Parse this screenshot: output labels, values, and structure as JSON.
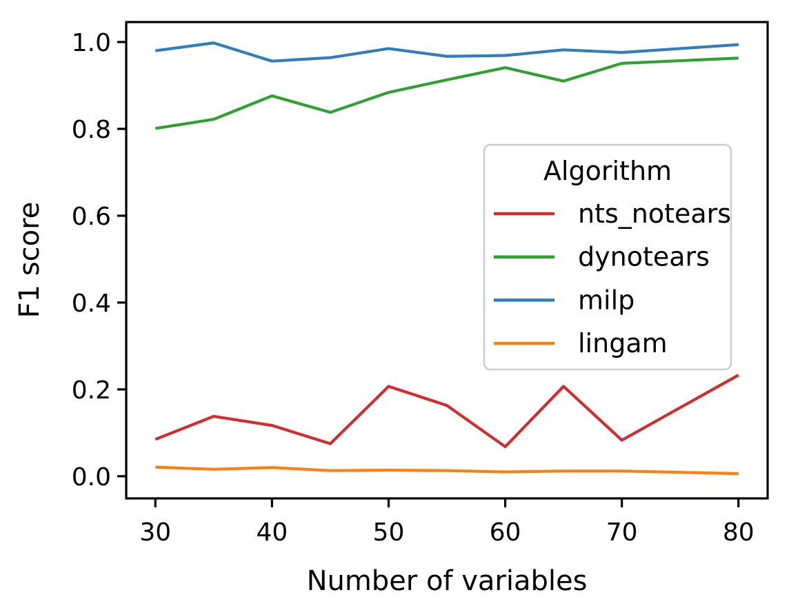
{
  "chart_data": {
    "type": "line",
    "title": "",
    "xlabel": "Number of variables",
    "ylabel": "F1 score",
    "x": [
      30,
      35,
      40,
      45,
      50,
      55,
      60,
      65,
      70,
      75,
      80
    ],
    "series": [
      {
        "name": "nts_notears",
        "color": "#d62b2b",
        "values": [
          0.085,
          0.138,
          0.117,
          0.075,
          0.207,
          0.163,
          0.068,
          0.207,
          0.083,
          0.158,
          0.233
        ]
      },
      {
        "name": "dynotears",
        "color": "#2fa12e",
        "values": [
          0.801,
          0.822,
          0.876,
          0.838,
          0.884,
          0.913,
          0.941,
          0.91,
          0.951,
          0.957,
          0.963
        ]
      },
      {
        "name": "milp",
        "color": "#2e7ebc",
        "values": [
          0.98,
          0.998,
          0.956,
          0.964,
          0.985,
          0.967,
          0.969,
          0.982,
          0.976,
          0.985,
          0.994
        ]
      },
      {
        "name": "lingam",
        "color": "#ff800e",
        "values": [
          0.021,
          0.016,
          0.02,
          0.013,
          0.014,
          0.013,
          0.01,
          0.012,
          0.012,
          0.009,
          0.006
        ]
      }
    ],
    "legend": {
      "title": "Algorithm",
      "position": "center-right",
      "frame_color": "#cccccc"
    },
    "xlim": [
      27.5,
      82.5
    ],
    "ylim": [
      -0.051,
      1.046
    ],
    "xticks": [
      "30",
      "40",
      "50",
      "60",
      "70",
      "80"
    ],
    "yticks": [
      "0.0",
      "0.2",
      "0.4",
      "0.6",
      "0.8",
      "1.0"
    ],
    "grid": false,
    "axis_color": "#000000"
  }
}
